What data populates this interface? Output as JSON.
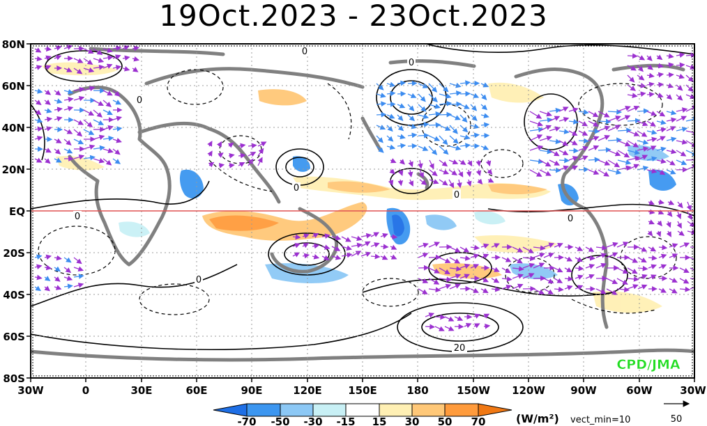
{
  "title": "19Oct.2023 - 23Oct.2023",
  "lat_labels": [
    "80N",
    "60N",
    "40N",
    "20N",
    "EQ",
    "20S",
    "40S",
    "60S",
    "80S"
  ],
  "lon_labels": [
    "30W",
    "0",
    "30E",
    "60E",
    "90E",
    "120E",
    "150E",
    "180",
    "150W",
    "120W",
    "90W",
    "60W",
    "30W"
  ],
  "colorbar": {
    "ticks": [
      "-70",
      "-50",
      "-30",
      "-15",
      "15",
      "30",
      "50",
      "70"
    ],
    "colors": [
      "#1e6fe6",
      "#3c96f0",
      "#8cc8f5",
      "#c8f0f5",
      "#ffffff",
      "#fff0b4",
      "#ffc878",
      "#ff9b3c",
      "#f07814"
    ],
    "unit": "(W/m²)",
    "vect_min": "vect_min=10"
  },
  "vector_ref": {
    "value": "50"
  },
  "credit": "CPD/JMA",
  "contour_labels": [
    "0",
    "0",
    "0",
    "0",
    "0",
    "0",
    "0",
    "0",
    "20"
  ],
  "colors": {
    "equator": "#e05050",
    "land": "#808080",
    "vector": "#9b30d0",
    "vector_strong": "#3c8cf0",
    "credit": "#22dd22"
  }
}
